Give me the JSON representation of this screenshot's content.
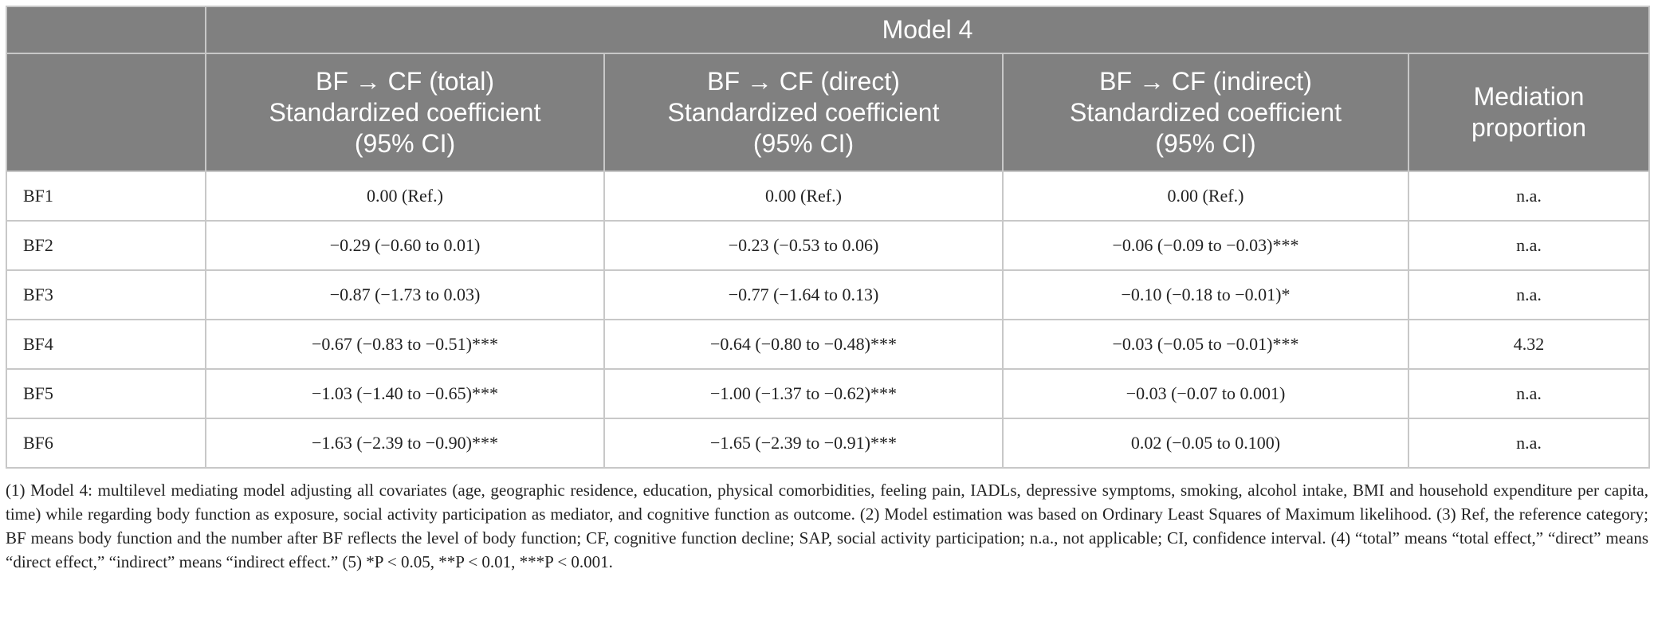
{
  "table": {
    "group_header": "Model 4",
    "columns": [
      [
        "BF → CF (total)",
        "Standardized coefficient",
        "(95% CI)"
      ],
      [
        "BF → CF (direct)",
        "Standardized coefficient",
        "(95% CI)"
      ],
      [
        "BF → CF (indirect)",
        "Standardized coefficient",
        "(95% CI)"
      ],
      [
        "Mediation",
        "proportion"
      ]
    ],
    "rows": [
      [
        "BF1",
        "0.00 (Ref.)",
        "0.00 (Ref.)",
        "0.00 (Ref.)",
        "n.a."
      ],
      [
        "BF2",
        "−0.29 (−0.60 to 0.01)",
        "−0.23 (−0.53 to 0.06)",
        "−0.06 (−0.09 to −0.03)***",
        "n.a."
      ],
      [
        "BF3",
        "−0.87 (−1.73 to 0.03)",
        "−0.77 (−1.64 to 0.13)",
        "−0.10 (−0.18 to −0.01)*",
        "n.a."
      ],
      [
        "BF4",
        "−0.67 (−0.83 to −0.51)***",
        "−0.64 (−0.80 to −0.48)***",
        "−0.03 (−0.05 to −0.01)***",
        "4.32"
      ],
      [
        "BF5",
        "−1.03 (−1.40 to −0.65)***",
        "−1.00 (−1.37 to −0.62)***",
        "−0.03 (−0.07 to 0.001)",
        "n.a."
      ],
      [
        "BF6",
        "−1.63 (−2.39 to −0.90)***",
        "−1.65 (−2.39 to −0.91)***",
        "0.02 (−0.05 to 0.100)",
        "n.a."
      ]
    ]
  },
  "notes": "(1) Model 4: multilevel mediating model adjusting all covariates (age, geographic residence, education, physical comorbidities, feeling pain, IADLs, depressive symptoms, smoking, alcohol intake, BMI and household expenditure per capita, time) while regarding body function as exposure, social activity participation as mediator, and cognitive function as outcome. (2) Model estimation was based on Ordinary Least Squares of Maximum likelihood. (3) Ref, the reference category; BF means body function and the number after BF reflects the level of body function; CF, cognitive function decline; SAP, social activity participation; n.a., not applicable; CI, confidence interval. (4) “total” means “total effect,” “direct” means “direct effect,” “indirect” means “indirect effect.” (5) *P < 0.05, **P < 0.01, ***P < 0.001."
}
